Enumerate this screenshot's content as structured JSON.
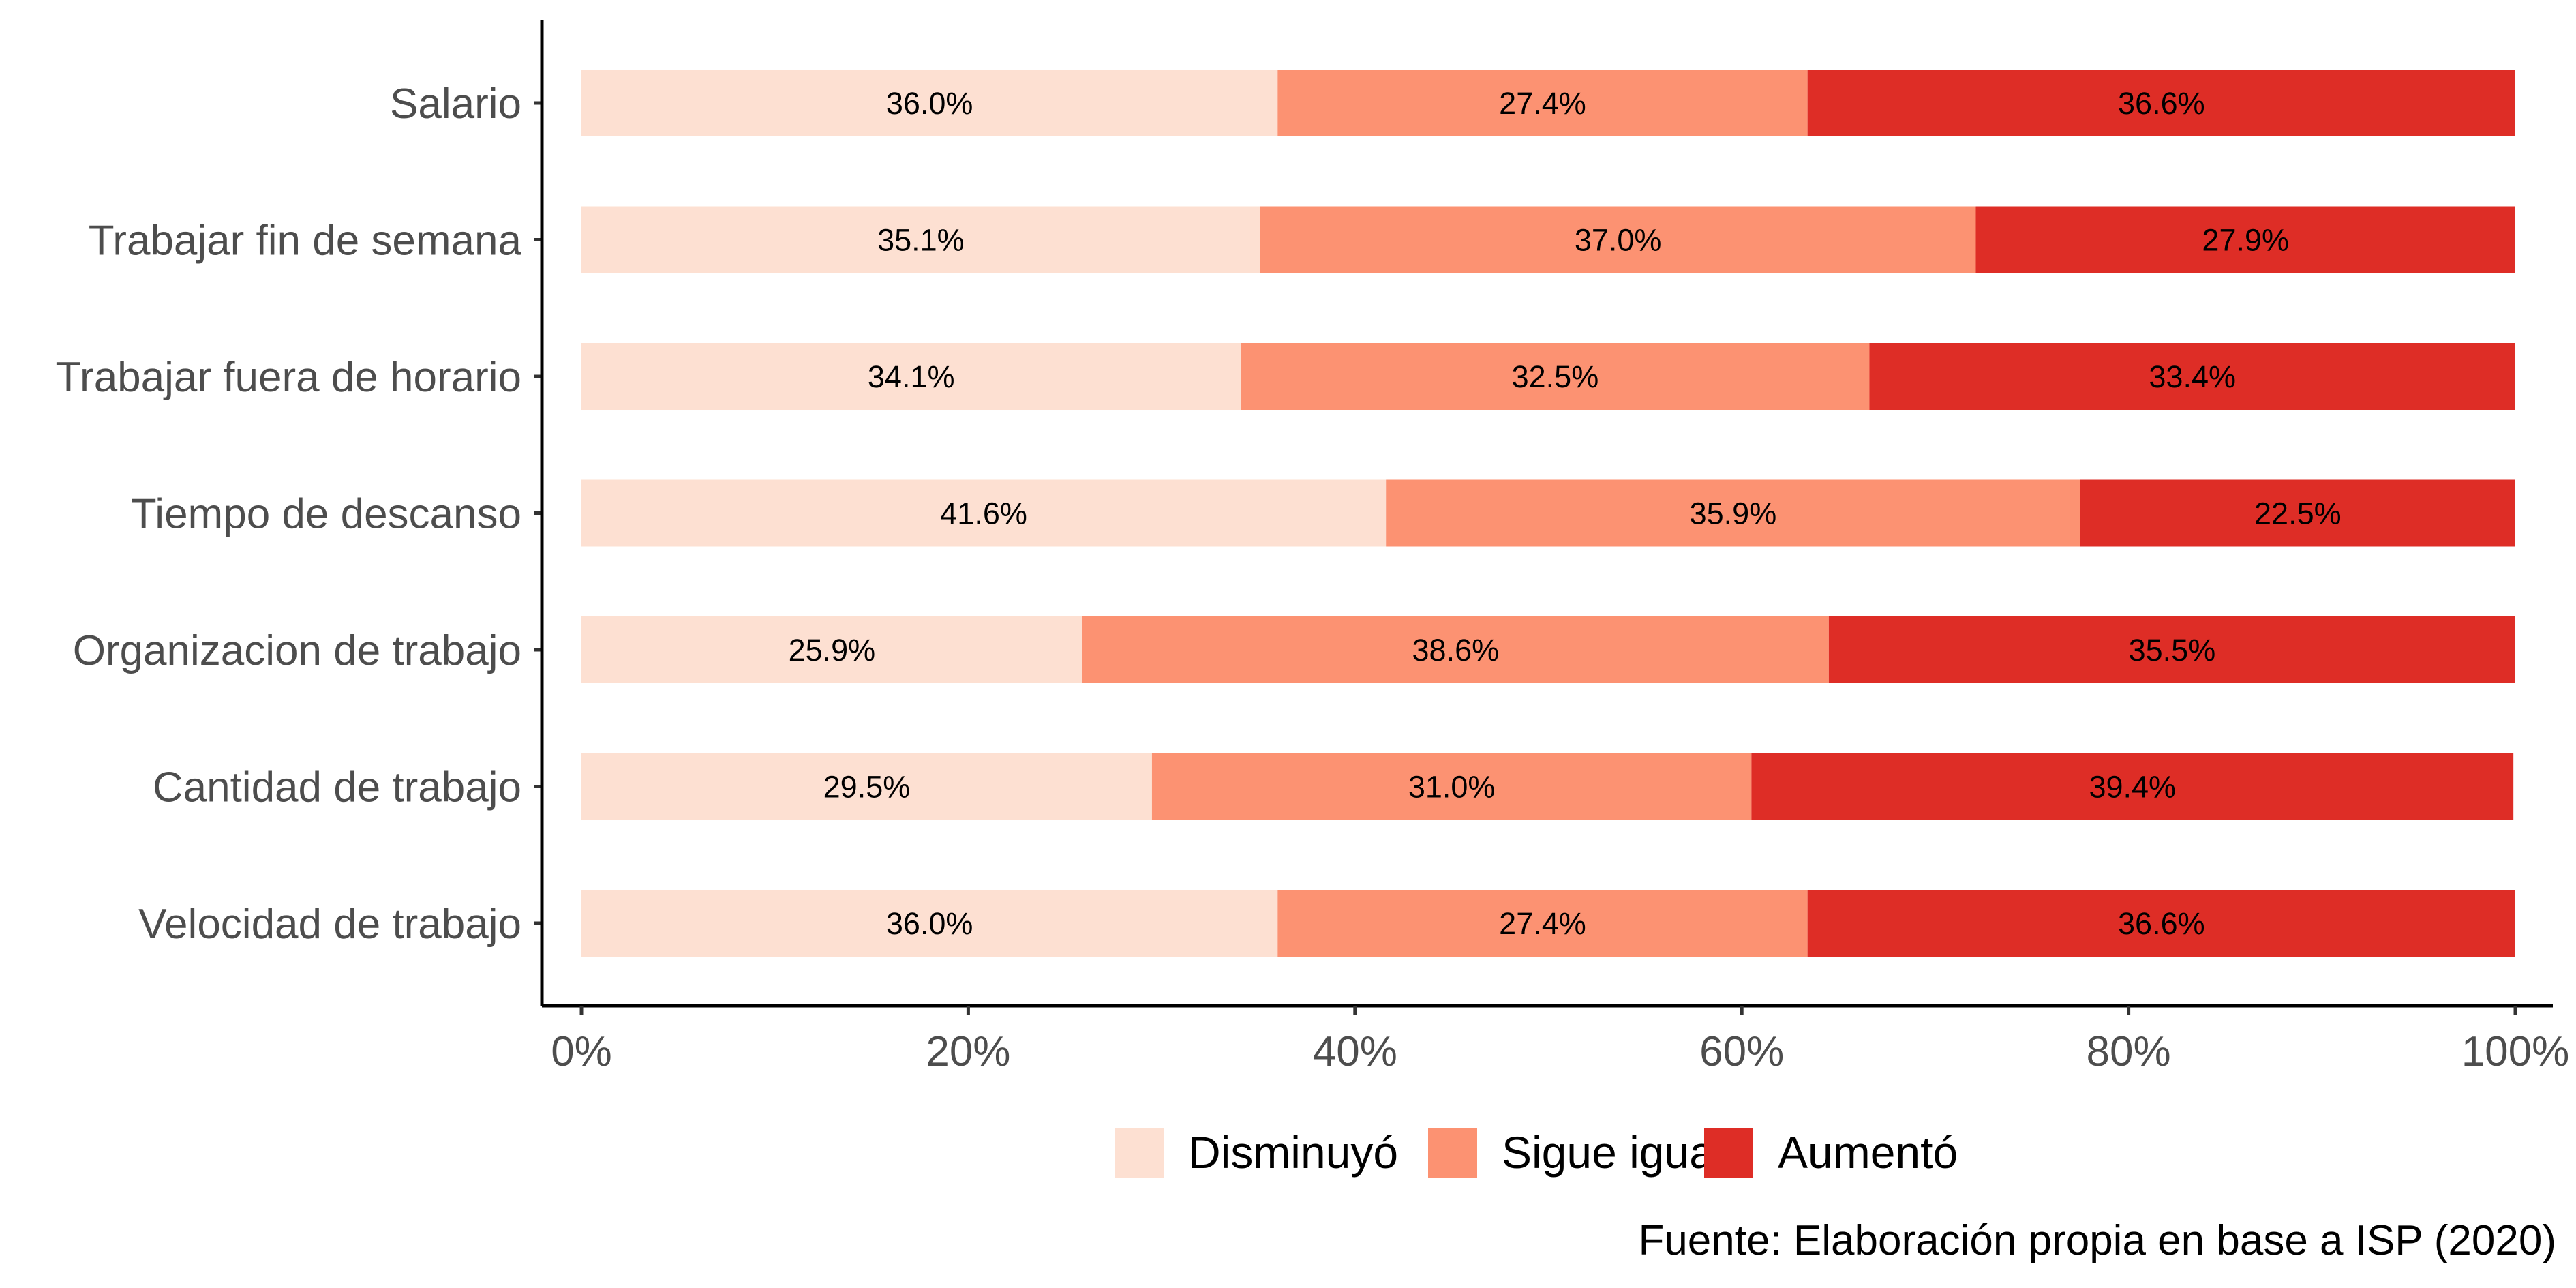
{
  "chart_data": {
    "type": "bar",
    "orientation": "horizontal",
    "stacked": true,
    "categories": [
      "Salario",
      "Trabajar fin de semana",
      "Trabajar fuera de horario",
      "Tiempo de descanso",
      "Organizacion de trabajo",
      "Cantidad de trabajo",
      "Velocidad de trabajo"
    ],
    "series": [
      {
        "name": "Disminuyó",
        "color": "#fde0d2",
        "values": [
          36.0,
          35.1,
          34.1,
          41.6,
          25.9,
          29.5,
          36.0
        ]
      },
      {
        "name": "Sigue igual",
        "color": "#fc9272",
        "values": [
          27.4,
          37.0,
          32.5,
          35.9,
          38.6,
          31.0,
          27.4
        ]
      },
      {
        "name": "Aumentó",
        "color": "#de2d26",
        "values": [
          36.6,
          27.9,
          33.4,
          22.5,
          35.5,
          39.4,
          36.6
        ]
      }
    ],
    "data_labels": [
      [
        "36.0%",
        "27.4%",
        "36.6%"
      ],
      [
        "35.1%",
        "37.0%",
        "27.9%"
      ],
      [
        "34.1%",
        "32.5%",
        "33.4%"
      ],
      [
        "41.6%",
        "35.9%",
        "22.5%"
      ],
      [
        "25.9%",
        "38.6%",
        "35.5%"
      ],
      [
        "29.5%",
        "31.0%",
        "39.4%"
      ],
      [
        "36.0%",
        "27.4%",
        "36.6%"
      ]
    ],
    "xlim": [
      0,
      100
    ],
    "x_ticks": [
      0,
      20,
      40,
      60,
      80,
      100
    ],
    "x_tick_labels": [
      "0%",
      "20%",
      "40%",
      "60%",
      "80%",
      "100%"
    ],
    "title": "",
    "xlabel": "",
    "ylabel": "",
    "grid": false,
    "legend_position": "bottom",
    "caption": "Fuente: Elaboración propia en base a ISP (2020)"
  }
}
